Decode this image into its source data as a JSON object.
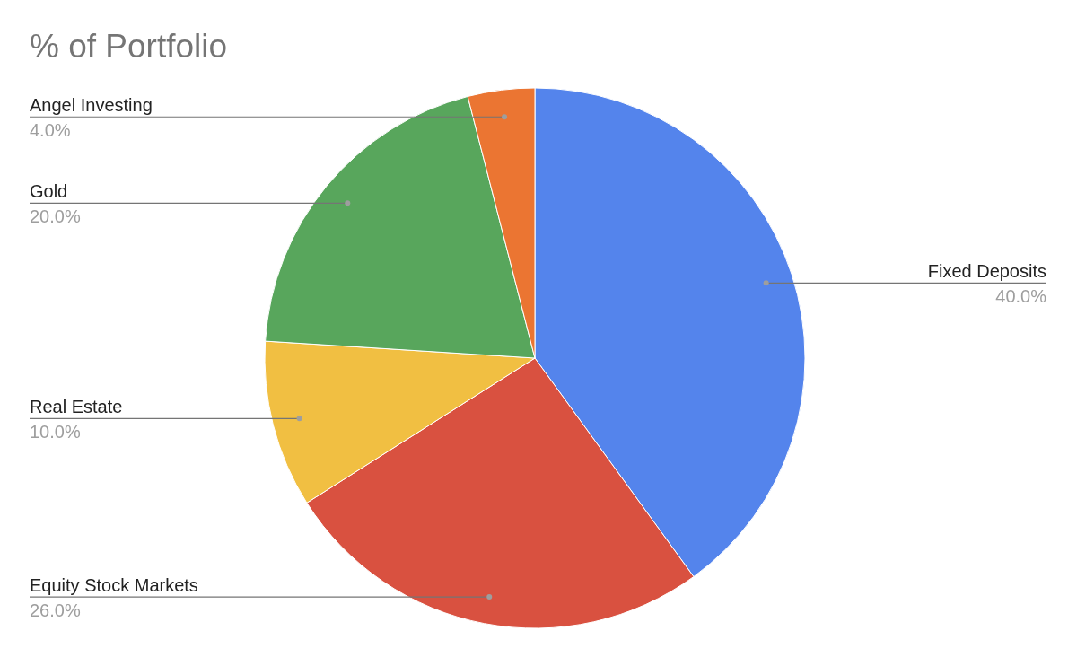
{
  "chart_data": {
    "type": "pie",
    "title": "% of Portfolio",
    "categories": [
      "Fixed Deposits",
      "Equity Stock Markets",
      "Real Estate",
      "Gold",
      "Angel Investing"
    ],
    "values": [
      40,
      26,
      10,
      20,
      4
    ],
    "value_labels": [
      "40.0%",
      "26.0%",
      "10.0%",
      "20.0%",
      "4.0%"
    ],
    "colors": [
      "#5484ec",
      "#d95140",
      "#f1bf42",
      "#58a65c",
      "#eb7532"
    ]
  }
}
